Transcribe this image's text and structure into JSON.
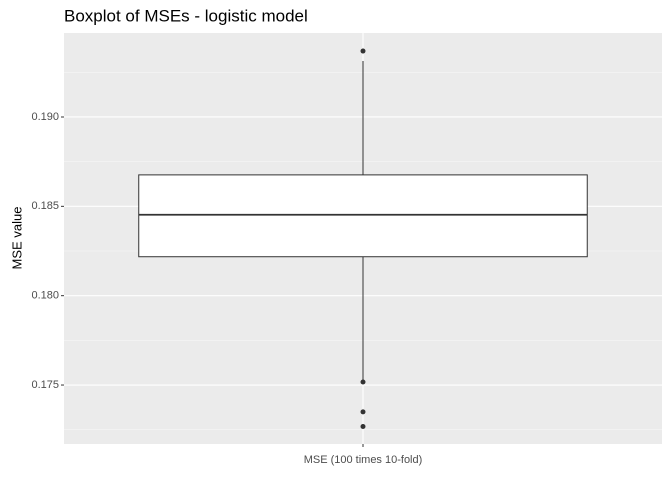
{
  "chart_data": {
    "type": "boxplot",
    "title": "Boxplot of MSEs - logistic model",
    "y_label": "MSE value",
    "categories": [
      "MSE (100 times 10-fold)"
    ],
    "boxes": [
      {
        "min": 0.1752,
        "q1": 0.18218,
        "median": 0.18453,
        "q3": 0.18676,
        "max": 0.19313,
        "outliers": [
          0.19369,
          0.17517,
          0.1735,
          0.17268
        ]
      }
    ],
    "box_color": "#ffffff",
    "ylim": [
      0.1717,
      0.1947
    ],
    "yticks": [
      0.175,
      {
        "value": 0.18,
        "label": "0.180"
      },
      0.185,
      {
        "value": 0.19,
        "label": "0.190"
      }
    ],
    "grid": true
  }
}
